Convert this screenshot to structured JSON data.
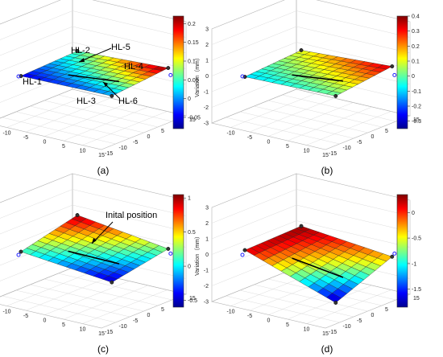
{
  "chart_data": [
    {
      "type": "surface3d",
      "caption": "(a)",
      "ylabel": "Variation（mm）",
      "zlim": [
        -3,
        3
      ],
      "z_ticks": [
        "3",
        "2",
        "1",
        "0",
        "-1",
        "-2",
        "-3"
      ],
      "x_ticks": [
        "-15",
        "-10",
        "-5",
        "0",
        "5",
        "10",
        "15"
      ],
      "y_ticks": [
        "-15",
        "-10",
        "-5",
        "0",
        "5",
        "10",
        "15"
      ],
      "colorbar": {
        "min": -0.08,
        "max": 0.22,
        "ticks": [
          "0.2",
          "0.15",
          "0.1",
          "0.05",
          "0",
          "-0.05"
        ]
      },
      "corners": {
        "ll": -0.05,
        "lr": 0.0,
        "ul": 0.05,
        "ur": 0.22
      },
      "annotations": [
        "HL-1",
        "HL-2",
        "HL-3",
        "HL-4",
        "HL-5",
        "HL-6"
      ]
    },
    {
      "type": "surface3d",
      "caption": "(b)",
      "ylabel": "Variation（mm）",
      "zlim": [
        -3,
        3
      ],
      "z_ticks": [
        "3",
        "2",
        "1",
        "0",
        "-1",
        "-2",
        "-3"
      ],
      "x_ticks": [
        "-15",
        "-10",
        "-5",
        "0",
        "5",
        "10",
        "15"
      ],
      "y_ticks": [
        "-15",
        "-10",
        "-5",
        "0",
        "5",
        "10",
        "15"
      ],
      "colorbar": {
        "min": -0.35,
        "max": 0.4,
        "ticks": [
          "0.4",
          "0.3",
          "0.2",
          "0.1",
          "0",
          "-0.1",
          "-0.2",
          "-0.3"
        ]
      },
      "corners": {
        "ll": -0.1,
        "lr": 0.0,
        "ul": 0.1,
        "ur": 0.35
      }
    },
    {
      "type": "surface3d",
      "caption": "(c)",
      "ylabel": "Variation（mm）",
      "zlim": [
        -3,
        3
      ],
      "z_ticks": [
        "3",
        "2",
        "1",
        "0",
        "-1",
        "-2",
        "-3"
      ],
      "x_ticks": [
        "-15",
        "-10",
        "-5",
        "0",
        "5",
        "10",
        "15"
      ],
      "y_ticks": [
        "-15",
        "-10",
        "-5",
        "0",
        "5",
        "10",
        "15"
      ],
      "colorbar": {
        "min": -0.6,
        "max": 1.05,
        "ticks": [
          "1",
          "0.5",
          "0",
          "-0.5"
        ]
      },
      "corners": {
        "ll": 0.1,
        "lr": -0.5,
        "ul": 1.0,
        "ur": 0.2
      },
      "annotation": "Inital position"
    },
    {
      "type": "surface3d",
      "caption": "(d)",
      "ylabel": "Variation（mm）",
      "zlim": [
        -3,
        3
      ],
      "z_ticks": [
        "3",
        "2",
        "1",
        "0",
        "-1",
        "-2",
        "-3"
      ],
      "x_ticks": [
        "-15",
        "-10",
        "-5",
        "0",
        "5",
        "10",
        "15"
      ],
      "y_ticks": [
        "-15",
        "-10",
        "-5",
        "0",
        "5",
        "10",
        "15"
      ],
      "colorbar": {
        "min": -1.85,
        "max": 0.35,
        "ticks": [
          "0",
          "-0.5",
          "-1",
          "-1.5"
        ]
      },
      "corners": {
        "ll": 0.2,
        "lr": -1.8,
        "ul": 0.3,
        "ur": -0.3
      }
    }
  ]
}
